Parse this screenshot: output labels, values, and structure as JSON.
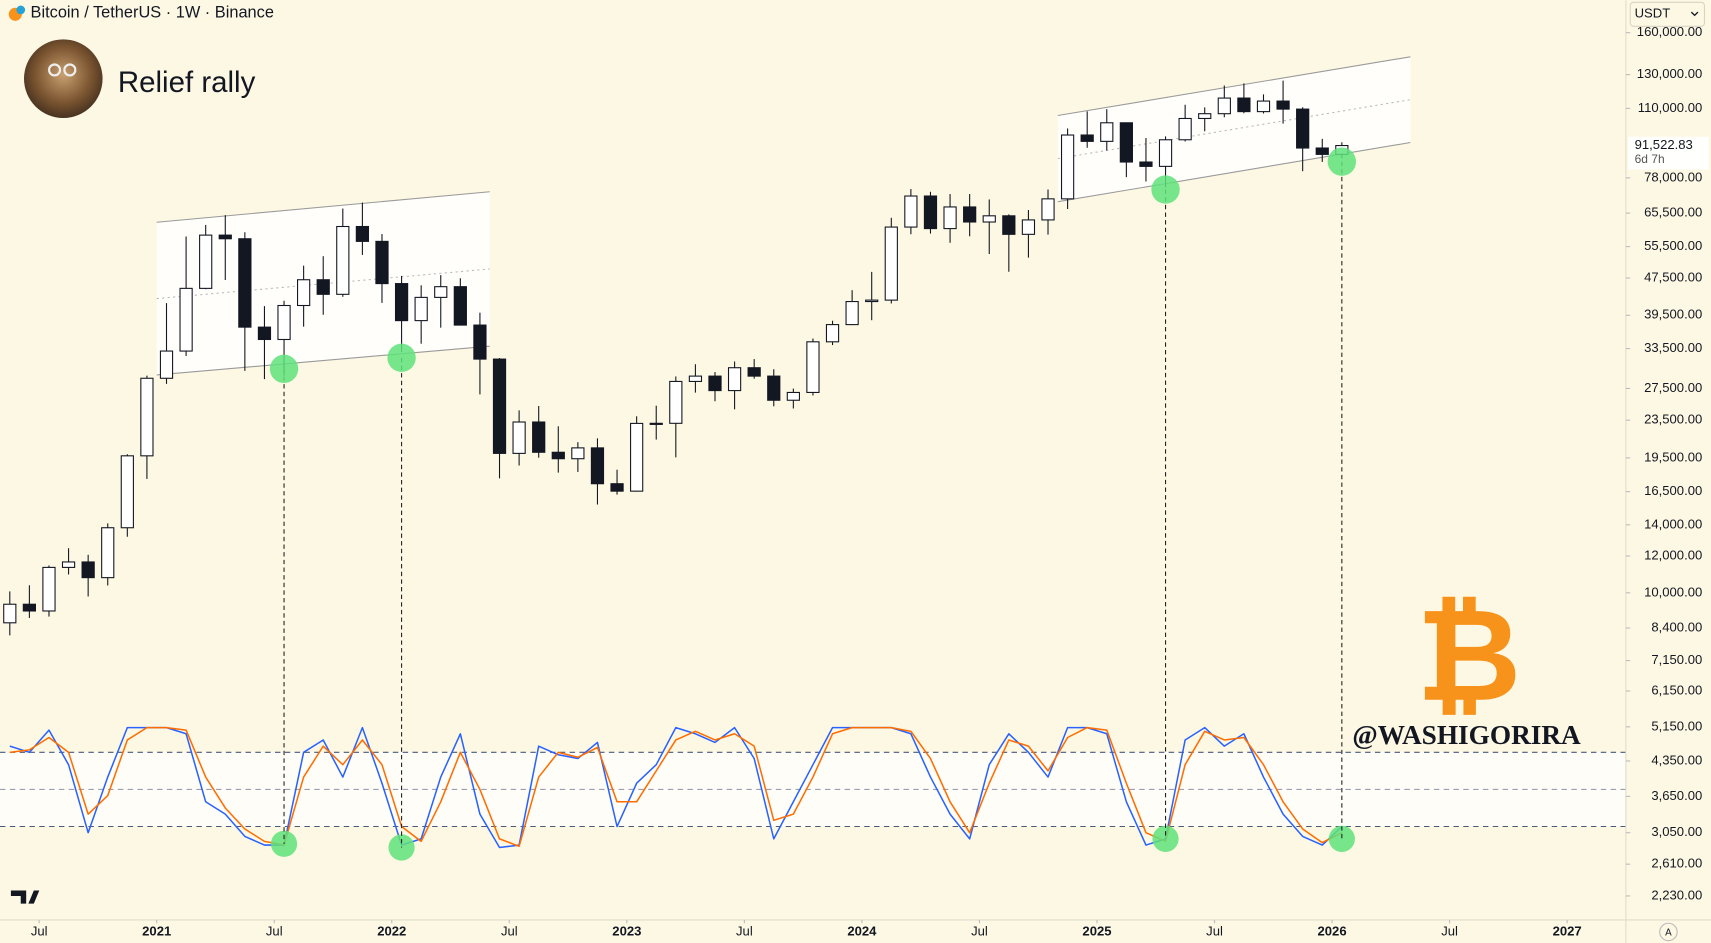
{
  "header": {
    "symbol": "Bitcoin / TetherUS · 1W · Binance",
    "currency": "USDT",
    "countdown": "6d 7h",
    "watermark": "@WASHIGORIRA"
  },
  "chart_data": [
    {
      "type": "candlestick",
      "title": "Relief rally",
      "log_scale": true,
      "grid": false,
      "up_color": "#ffffff",
      "down_color": "#131722",
      "x": [
        "2020-05",
        "2020-06",
        "2020-07",
        "2020-08",
        "2020-09",
        "2020-10",
        "2020-11",
        "2020-12",
        "2021-01",
        "2021-02",
        "2021-03",
        "2021-04",
        "2021-05",
        "2021-06",
        "2021-07",
        "2021-08",
        "2021-09",
        "2021-10",
        "2021-11",
        "2021-12",
        "2022-01",
        "2022-02",
        "2022-03",
        "2022-04",
        "2022-05",
        "2022-06",
        "2022-07",
        "2022-08",
        "2022-09",
        "2022-10",
        "2022-11",
        "2022-12",
        "2023-01",
        "2023-02",
        "2023-03",
        "2023-04",
        "2023-05",
        "2023-06",
        "2023-07",
        "2023-08",
        "2023-09",
        "2023-10",
        "2023-11",
        "2023-12",
        "2024-01",
        "2024-02",
        "2024-03",
        "2024-04",
        "2024-05",
        "2024-06",
        "2024-07",
        "2024-08",
        "2024-09",
        "2024-10",
        "2024-11",
        "2024-12",
        "2025-01",
        "2025-02",
        "2025-03",
        "2025-04",
        "2025-05",
        "2025-06",
        "2025-07",
        "2025-08",
        "2025-09",
        "2025-10",
        "2025-11",
        "2025-12",
        "2026-01"
      ],
      "open": [
        8620,
        9450,
        9140,
        11340,
        11650,
        10780,
        13800,
        19700,
        28920,
        33090,
        45130,
        58740,
        57690,
        37250,
        35040,
        41460,
        47100,
        43820,
        61300,
        56950,
        46210,
        38470,
        43160,
        45510,
        37630,
        31800,
        19940,
        23290,
        20050,
        19420,
        20490,
        17160,
        16540,
        23130,
        23140,
        28470,
        29230,
        27210,
        30470,
        29230,
        25940,
        26960,
        34640,
        37720,
        42280,
        42580,
        61130,
        71280,
        60670,
        67530,
        62680,
        64630,
        58970,
        63330,
        70290,
        96410,
        93430,
        102430,
        84350,
        82550,
        94170,
        104640,
        107140,
        115760,
        108250,
        114050,
        109600,
        90400,
        87600
      ],
      "high": [
        10070,
        10380,
        11450,
        12470,
        12070,
        14100,
        19860,
        29300,
        41950,
        58350,
        61780,
        64850,
        59590,
        41330,
        42450,
        50500,
        52920,
        67000,
        69000,
        59050,
        47990,
        45820,
        48190,
        47440,
        40020,
        31960,
        24670,
        25210,
        22800,
        21080,
        21480,
        18390,
        23960,
        25250,
        29180,
        31000,
        29820,
        31430,
        31800,
        30240,
        27480,
        35200,
        38450,
        44730,
        48970,
        64000,
        73780,
        72800,
        71980,
        71990,
        70080,
        65100,
        66500,
        73620,
        99590,
        108350,
        109590,
        102500,
        95000,
        95760,
        111980,
        110530,
        123220,
        124470,
        117900,
        126200,
        110600,
        94600,
        93000
      ],
      "low": [
        8100,
        8830,
        8890,
        10950,
        9820,
        10370,
        13200,
        17570,
        28130,
        32300,
        44950,
        47040,
        30000,
        28800,
        29280,
        37330,
        39600,
        43280,
        53250,
        42000,
        32920,
        34320,
        37150,
        37580,
        26700,
        17620,
        18780,
        19520,
        18130,
        18190,
        15480,
        16260,
        16500,
        21350,
        19550,
        26940,
        25810,
        24800,
        28860,
        25170,
        24900,
        26560,
        34090,
        37620,
        38550,
        41880,
        59000,
        59190,
        56550,
        58400,
        53500,
        49000,
        52550,
        58900,
        66840,
        90500,
        89260,
        78260,
        76600,
        74500,
        93380,
        98200,
        105270,
        107350,
        107270,
        102000,
        80600,
        84400,
        86000
      ],
      "close": [
        9450,
        9140,
        11340,
        11650,
        10780,
        13800,
        19700,
        28920,
        33090,
        45130,
        58740,
        57690,
        37250,
        35040,
        41460,
        47100,
        43820,
        61300,
        56950,
        46210,
        38470,
        43160,
        45510,
        37630,
        31800,
        19940,
        23290,
        20050,
        19420,
        20490,
        17160,
        16540,
        23130,
        23140,
        28470,
        29230,
        27210,
        30470,
        29230,
        25940,
        26960,
        34640,
        37720,
        42280,
        42580,
        61130,
        71280,
        60670,
        67530,
        62680,
        64630,
        58970,
        63330,
        70290,
        96410,
        93430,
        102430,
        84350,
        82550,
        94170,
        104640,
        107140,
        115760,
        108250,
        114050,
        109600,
        90400,
        87600,
        91520
      ],
      "xlim": [
        "2020-05",
        "2027-04"
      ],
      "xticks": [
        {
          "value": "2020-07",
          "label": "Jul"
        },
        {
          "value": "2021-01",
          "label": "2021"
        },
        {
          "value": "2021-07",
          "label": "Jul"
        },
        {
          "value": "2022-01",
          "label": "2022"
        },
        {
          "value": "2022-07",
          "label": "Jul"
        },
        {
          "value": "2023-01",
          "label": "2023"
        },
        {
          "value": "2023-07",
          "label": "Jul"
        },
        {
          "value": "2024-01",
          "label": "2024"
        },
        {
          "value": "2024-07",
          "label": "Jul"
        },
        {
          "value": "2025-01",
          "label": "2025"
        },
        {
          "value": "2025-07",
          "label": "Jul"
        },
        {
          "value": "2026-01",
          "label": "2026"
        },
        {
          "value": "2026-07",
          "label": "Jul"
        },
        {
          "value": "2027-01",
          "label": "2027"
        }
      ],
      "ylim": [
        1980,
        188000
      ],
      "yticks": [
        {
          "value": 160000,
          "label": "160,000.00"
        },
        {
          "value": 130000,
          "label": "130,000.00"
        },
        {
          "value": 110000,
          "label": "110,000.00"
        },
        {
          "value": 78000,
          "label": "78,000.00"
        },
        {
          "value": 65500,
          "label": "65,500.00"
        },
        {
          "value": 55500,
          "label": "55,500.00"
        },
        {
          "value": 47500,
          "label": "47,500.00"
        },
        {
          "value": 39500,
          "label": "39,500.00"
        },
        {
          "value": 33500,
          "label": "33,500.00"
        },
        {
          "value": 27500,
          "label": "27,500.00"
        },
        {
          "value": 23500,
          "label": "23,500.00"
        },
        {
          "value": 19500,
          "label": "19,500.00"
        },
        {
          "value": 16500,
          "label": "16,500.00"
        },
        {
          "value": 14000,
          "label": "14,000.00"
        },
        {
          "value": 12000,
          "label": "12,000.00"
        },
        {
          "value": 10000,
          "label": "10,000.00"
        },
        {
          "value": 8400,
          "label": "8,400.00"
        },
        {
          "value": 7150,
          "label": "7,150.00"
        },
        {
          "value": 6150,
          "label": "6,150.00"
        },
        {
          "value": 5150,
          "label": "5,150.00"
        },
        {
          "value": 4350,
          "label": "4,350.00"
        },
        {
          "value": 3650,
          "label": "3,650.00"
        },
        {
          "value": 3050,
          "label": "3,050.00"
        },
        {
          "value": 2610,
          "label": "2,610.00"
        },
        {
          "value": 2230,
          "label": "2,230.00"
        }
      ],
      "last_price": {
        "value": 91522.83,
        "label": "91,522.83"
      },
      "channels": [
        {
          "start": "2021-01",
          "end": "2022-06",
          "upper": [
            62600,
            72800
          ],
          "lower": [
            29400,
            33900
          ]
        },
        {
          "start": "2024-11",
          "end": "2026-05",
          "upper": [
            106200,
            142000
          ],
          "lower": [
            69300,
            92900
          ]
        }
      ],
      "markers": [
        {
          "x": "2021-07",
          "value": 30300
        },
        {
          "x": "2022-01",
          "value": 32000
        },
        {
          "x": "2025-04",
          "value": 73600
        },
        {
          "x": "2026-01",
          "value": 84500
        }
      ],
      "marker_color": "#5fe27a"
    },
    {
      "type": "line",
      "ylim": [
        0,
        100
      ],
      "levels": [
        20,
        50,
        80
      ],
      "xlim": [
        "2020-05",
        "2027-04"
      ],
      "x": [
        "2020-05",
        "2020-06",
        "2020-07",
        "2020-08",
        "2020-09",
        "2020-10",
        "2020-11",
        "2020-12",
        "2021-01",
        "2021-02",
        "2021-03",
        "2021-04",
        "2021-05",
        "2021-06",
        "2021-07",
        "2021-08",
        "2021-09",
        "2021-10",
        "2021-11",
        "2021-12",
        "2022-01",
        "2022-02",
        "2022-03",
        "2022-04",
        "2022-05",
        "2022-06",
        "2022-07",
        "2022-08",
        "2022-09",
        "2022-10",
        "2022-11",
        "2022-12",
        "2023-01",
        "2023-02",
        "2023-03",
        "2023-04",
        "2023-05",
        "2023-06",
        "2023-07",
        "2023-08",
        "2023-09",
        "2023-10",
        "2023-11",
        "2023-12",
        "2024-01",
        "2024-02",
        "2024-03",
        "2024-04",
        "2024-05",
        "2024-06",
        "2024-07",
        "2024-08",
        "2024-09",
        "2024-10",
        "2024-11",
        "2024-12",
        "2025-01",
        "2025-02",
        "2025-03",
        "2025-04",
        "2025-05",
        "2025-06",
        "2025-07",
        "2025-08",
        "2025-09",
        "2025-10",
        "2025-11",
        "2025-12",
        "2026-01"
      ],
      "series": [
        {
          "color": "#2962ff",
          "values": [
            85,
            80,
            98,
            70,
            15,
            60,
            100,
            100,
            100,
            95,
            40,
            30,
            12,
            5,
            5,
            80,
            90,
            60,
            100,
            55,
            5,
            10,
            60,
            95,
            30,
            3,
            5,
            85,
            78,
            75,
            88,
            20,
            55,
            70,
            100,
            95,
            88,
            100,
            75,
            10,
            40,
            70,
            100,
            100,
            100,
            100,
            95,
            60,
            30,
            10,
            70,
            95,
            80,
            60,
            100,
            100,
            95,
            40,
            5,
            10,
            90,
            100,
            85,
            95,
            60,
            30,
            12,
            5,
            20
          ]
        },
        {
          "color": "#ff6d00",
          "values": [
            80,
            82,
            92,
            80,
            30,
            45,
            90,
            100,
            100,
            98,
            60,
            35,
            18,
            8,
            5,
            60,
            85,
            70,
            90,
            70,
            20,
            8,
            40,
            80,
            50,
            10,
            4,
            60,
            80,
            76,
            84,
            40,
            40,
            65,
            90,
            97,
            90,
            95,
            85,
            25,
            30,
            60,
            95,
            100,
            100,
            100,
            97,
            75,
            40,
            15,
            55,
            90,
            85,
            65,
            92,
            100,
            98,
            55,
            15,
            8,
            70,
            97,
            90,
            92,
            70,
            40,
            18,
            7,
            15
          ]
        }
      ],
      "markers": [
        {
          "x": "2021-07",
          "value": 6
        },
        {
          "x": "2022-01",
          "value": 3
        },
        {
          "x": "2025-04",
          "value": 10
        },
        {
          "x": "2026-01",
          "value": 10
        }
      ],
      "marker_color": "#5fe27a"
    }
  ]
}
